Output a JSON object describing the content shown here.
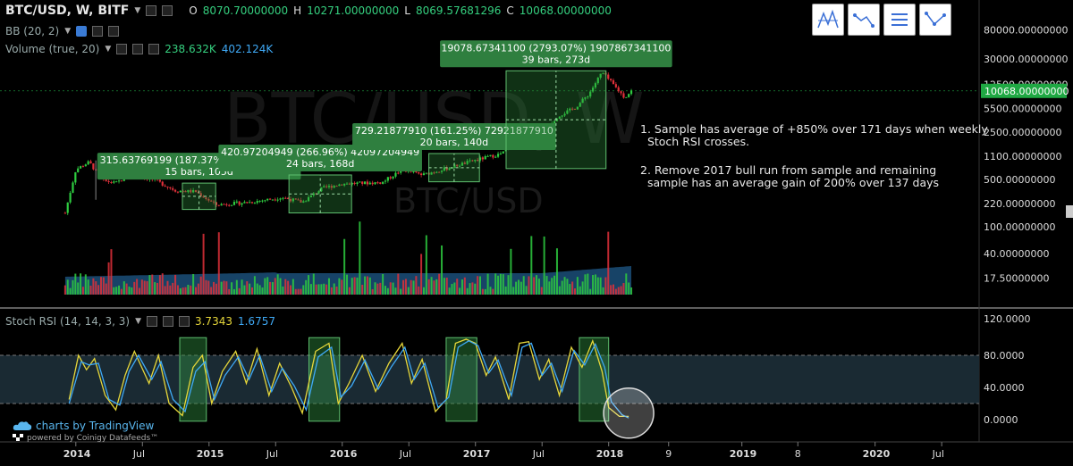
{
  "header": {
    "symbol": "BTC/USD, W, BITF",
    "ohlc": [
      {
        "key": "O",
        "value": "8070.70000000"
      },
      {
        "key": "H",
        "value": "10271.00000000"
      },
      {
        "key": "L",
        "value": "8069.57681296"
      },
      {
        "key": "C",
        "value": "10068.00000000"
      }
    ],
    "bb_label": "BB (20, 2)",
    "volume_label": "Volume (true, 20)",
    "volume_values": [
      "238.632K",
      "402.124K"
    ]
  },
  "watermark": {
    "big": "BTC/USD, W",
    "small": "BTC/USD"
  },
  "notes": [
    "1. Sample has average of +850% over 171 days when weekly\n  Stoch RSI crosses.",
    "2. Remove 2017 bull run from sample and remaining\n  sample has an average gain of 200% over 137 days"
  ],
  "branding": {
    "main": "charts by TradingView",
    "sub": "powered by Coinigy Datafeeds™"
  },
  "stoch": {
    "label": "Stoch RSI (14, 14, 3, 3)",
    "k": "3.7343",
    "d": "1.6757"
  },
  "colors": {
    "up": "#2ecc40",
    "down": "#e0303a",
    "k_line": "#e6d73a",
    "d_line": "#3fa9f5",
    "band_fill": "#1a2a33",
    "box_fill": "#2e8b3d",
    "label_bg": "#2f7f3f"
  },
  "chart_data": [
    {
      "type": "candlestick",
      "title": "BTC/USD, W, BITF",
      "y_scale": "log",
      "x_ticks": [
        "2014",
        "Jul",
        "2015",
        "Jul",
        "2016",
        "Jul",
        "2017",
        "Jul",
        "2018",
        "9",
        "2019",
        "8",
        "2020",
        "Jul"
      ],
      "y_ticks": [
        "80000.00000000",
        "30000.00000000",
        "12500.00000000",
        "5500.00000000",
        "2500.00000000",
        "1100.00000000",
        "500.00000000",
        "220.00000000",
        "100.00000000",
        "40.00000000",
        "17.50000000"
      ],
      "last_price": "10068.00000000",
      "price_points": [
        {
          "t": 2013.92,
          "close": 160
        },
        {
          "t": 2014.0,
          "close": 700
        },
        {
          "t": 2014.1,
          "close": 900
        },
        {
          "t": 2014.2,
          "close": 480
        },
        {
          "t": 2014.3,
          "close": 440
        },
        {
          "t": 2014.42,
          "close": 600
        },
        {
          "t": 2014.6,
          "close": 480
        },
        {
          "t": 2014.75,
          "close": 340
        },
        {
          "t": 2014.9,
          "close": 330
        },
        {
          "t": 2015.05,
          "close": 210
        },
        {
          "t": 2015.3,
          "close": 230
        },
        {
          "t": 2015.55,
          "close": 270
        },
        {
          "t": 2015.7,
          "close": 230
        },
        {
          "t": 2015.85,
          "close": 370
        },
        {
          "t": 2016.0,
          "close": 430
        },
        {
          "t": 2016.3,
          "close": 450
        },
        {
          "t": 2016.45,
          "close": 700
        },
        {
          "t": 2016.6,
          "close": 580
        },
        {
          "t": 2016.8,
          "close": 740
        },
        {
          "t": 2017.0,
          "close": 960
        },
        {
          "t": 2017.2,
          "close": 1200
        },
        {
          "t": 2017.35,
          "close": 2200
        },
        {
          "t": 2017.5,
          "close": 2500
        },
        {
          "t": 2017.62,
          "close": 4300
        },
        {
          "t": 2017.75,
          "close": 5700
        },
        {
          "t": 2017.85,
          "close": 9000
        },
        {
          "t": 2017.95,
          "close": 19000
        },
        {
          "t": 2018.05,
          "close": 11500
        },
        {
          "t": 2018.12,
          "close": 8000
        },
        {
          "t": 2018.17,
          "close": 10068
        }
      ],
      "measure_boxes": [
        {
          "t0": 2014.8,
          "t1": 2015.05,
          "p0": 180,
          "p1": 440,
          "label1": "315.63769199 (187.37%) 31563769199",
          "label2": "15 bars, 105d"
        },
        {
          "t0": 2015.6,
          "t1": 2016.07,
          "p0": 160,
          "p1": 580,
          "label1": "420.97204949 (266.96%) 42097204949",
          "label2": "24 bars, 168d"
        },
        {
          "t0": 2016.65,
          "t1": 2017.03,
          "p0": 460,
          "p1": 1200,
          "label1": "729.21877910 (161.25%) 72921877910",
          "label2": "20 bars, 140d"
        },
        {
          "t0": 2017.23,
          "t1": 2017.98,
          "p0": 720,
          "p1": 19900,
          "label1": "19078.67341100 (2793.07%) 1907867341100",
          "label2": "39 bars, 273d"
        }
      ]
    },
    {
      "type": "line",
      "title": "Stoch RSI (14, 14, 3, 3)",
      "y_ticks": [
        "120.0000",
        "80.0000",
        "40.0000",
        "0.0000"
      ],
      "ylim": [
        0,
        120
      ],
      "series": [
        {
          "name": "K",
          "points": [
            [
              2013.95,
              25
            ],
            [
              2014.02,
              80
            ],
            [
              2014.08,
              62
            ],
            [
              2014.14,
              76
            ],
            [
              2014.22,
              30
            ],
            [
              2014.3,
              12
            ],
            [
              2014.37,
              55
            ],
            [
              2014.44,
              85
            ],
            [
              2014.55,
              45
            ],
            [
              2014.62,
              80
            ],
            [
              2014.7,
              20
            ],
            [
              2014.8,
              5
            ],
            [
              2014.88,
              65
            ],
            [
              2014.95,
              80
            ],
            [
              2015.02,
              20
            ],
            [
              2015.1,
              60
            ],
            [
              2015.2,
              85
            ],
            [
              2015.28,
              45
            ],
            [
              2015.36,
              88
            ],
            [
              2015.45,
              30
            ],
            [
              2015.53,
              70
            ],
            [
              2015.62,
              40
            ],
            [
              2015.7,
              8
            ],
            [
              2015.8,
              85
            ],
            [
              2015.9,
              95
            ],
            [
              2015.97,
              20
            ],
            [
              2016.05,
              45
            ],
            [
              2016.15,
              80
            ],
            [
              2016.25,
              35
            ],
            [
              2016.35,
              70
            ],
            [
              2016.45,
              95
            ],
            [
              2016.52,
              45
            ],
            [
              2016.6,
              75
            ],
            [
              2016.7,
              10
            ],
            [
              2016.78,
              25
            ],
            [
              2016.85,
              95
            ],
            [
              2016.93,
              100
            ],
            [
              2017.0,
              95
            ],
            [
              2017.08,
              55
            ],
            [
              2017.15,
              78
            ],
            [
              2017.25,
              25
            ],
            [
              2017.33,
              95
            ],
            [
              2017.4,
              97
            ],
            [
              2017.48,
              50
            ],
            [
              2017.55,
              75
            ],
            [
              2017.63,
              30
            ],
            [
              2017.72,
              90
            ],
            [
              2017.8,
              65
            ],
            [
              2017.88,
              98
            ],
            [
              2017.95,
              60
            ],
            [
              2018.0,
              15
            ],
            [
              2018.08,
              4
            ],
            [
              2018.15,
              4
            ]
          ]
        },
        {
          "name": "D",
          "points": [
            [
              2013.95,
              20
            ],
            [
              2014.04,
              72
            ],
            [
              2014.1,
              68
            ],
            [
              2014.17,
              70
            ],
            [
              2014.25,
              25
            ],
            [
              2014.33,
              18
            ],
            [
              2014.4,
              60
            ],
            [
              2014.47,
              80
            ],
            [
              2014.57,
              50
            ],
            [
              2014.64,
              72
            ],
            [
              2014.73,
              25
            ],
            [
              2014.82,
              10
            ],
            [
              2014.9,
              60
            ],
            [
              2014.97,
              72
            ],
            [
              2015.04,
              25
            ],
            [
              2015.12,
              55
            ],
            [
              2015.22,
              78
            ],
            [
              2015.3,
              50
            ],
            [
              2015.38,
              80
            ],
            [
              2015.47,
              35
            ],
            [
              2015.55,
              64
            ],
            [
              2015.64,
              42
            ],
            [
              2015.73,
              12
            ],
            [
              2015.82,
              78
            ],
            [
              2015.92,
              90
            ],
            [
              2015.99,
              28
            ],
            [
              2016.07,
              42
            ],
            [
              2016.17,
              74
            ],
            [
              2016.27,
              38
            ],
            [
              2016.37,
              66
            ],
            [
              2016.47,
              90
            ],
            [
              2016.54,
              50
            ],
            [
              2016.62,
              70
            ],
            [
              2016.72,
              15
            ],
            [
              2016.8,
              28
            ],
            [
              2016.87,
              90
            ],
            [
              2016.95,
              98
            ],
            [
              2017.02,
              92
            ],
            [
              2017.1,
              58
            ],
            [
              2017.17,
              74
            ],
            [
              2017.27,
              30
            ],
            [
              2017.35,
              90
            ],
            [
              2017.42,
              95
            ],
            [
              2017.5,
              55
            ],
            [
              2017.57,
              70
            ],
            [
              2017.65,
              35
            ],
            [
              2017.74,
              86
            ],
            [
              2017.82,
              68
            ],
            [
              2017.9,
              94
            ],
            [
              2017.97,
              65
            ],
            [
              2018.02,
              22
            ],
            [
              2018.1,
              6
            ],
            [
              2018.15,
              2
            ]
          ]
        }
      ],
      "zones": [
        [
          2014.78,
          2014.98
        ],
        [
          2015.75,
          2015.98
        ],
        [
          2016.78,
          2017.01
        ],
        [
          2017.78,
          2018.0
        ]
      ]
    }
  ]
}
